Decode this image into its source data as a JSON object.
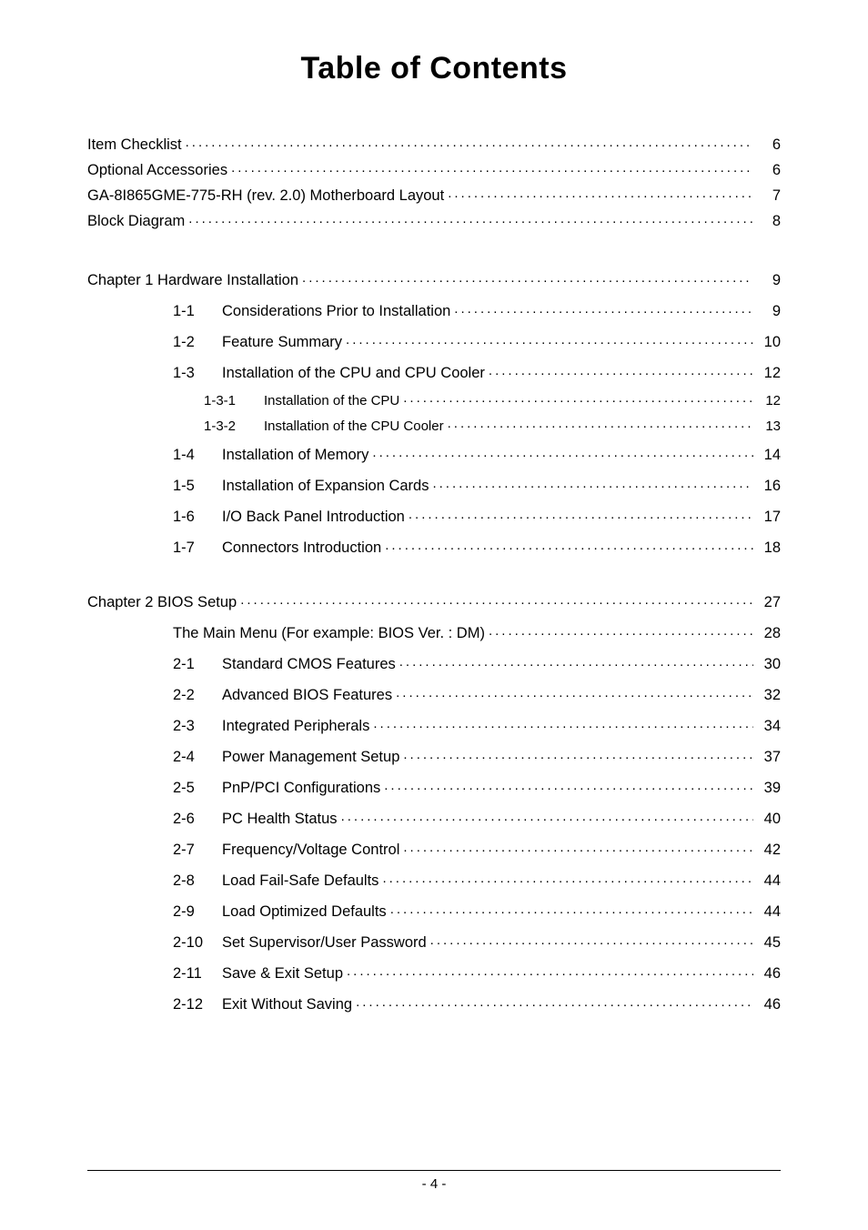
{
  "title": "Table of Contents",
  "footer": "- 4 -",
  "sections": {
    "pre": [
      {
        "label": "Item Checklist",
        "page": "6"
      },
      {
        "label": "Optional Accessories",
        "page": "6"
      },
      {
        "label": "GA-8I865GME-775-RH (rev. 2.0) Motherboard Layout",
        "page": "7"
      },
      {
        "label": "Block Diagram",
        "page": "8"
      }
    ],
    "ch1": {
      "header": {
        "label": "Chapter 1 Hardware Installation",
        "page": "9"
      },
      "items": [
        {
          "num": "1-1",
          "label": "Considerations Prior to Installation",
          "page": "9"
        },
        {
          "num": "1-2",
          "label": "Feature Summary",
          "page": "10"
        },
        {
          "num": "1-3",
          "label": "Installation of the CPU and CPU Cooler",
          "page": "12"
        }
      ],
      "subitems": [
        {
          "num": "1-3-1",
          "label": "Installation of the CPU",
          "page": "12"
        },
        {
          "num": "1-3-2",
          "label": "Installation of the CPU Cooler",
          "page": "13"
        }
      ],
      "items2": [
        {
          "num": "1-4",
          "label": "Installation of Memory",
          "page": "14"
        },
        {
          "num": "1-5",
          "label": "Installation of Expansion Cards",
          "page": "16"
        },
        {
          "num": "1-6",
          "label": "I/O Back Panel Introduction",
          "page": "17"
        },
        {
          "num": "1-7",
          "label": "Connectors Introduction",
          "page": "18"
        }
      ]
    },
    "ch2": {
      "header": {
        "label": "Chapter 2  BIOS Setup",
        "page": "27"
      },
      "main_menu": {
        "label": "The Main Menu (For example: BIOS Ver. : DM)",
        "page": "28"
      },
      "items": [
        {
          "num": "2-1",
          "label": "Standard CMOS Features",
          "page": "30"
        },
        {
          "num": "2-2",
          "label": "Advanced BIOS Features",
          "page": "32"
        },
        {
          "num": "2-3",
          "label": "Integrated Peripherals",
          "page": "34"
        },
        {
          "num": "2-4",
          "label": "Power Management Setup",
          "page": "37"
        },
        {
          "num": "2-5",
          "label": "PnP/PCI Configurations",
          "page": "39"
        },
        {
          "num": "2-6",
          "label": "PC Health Status",
          "page": "40"
        },
        {
          "num": "2-7",
          "label": "Frequency/Voltage Control",
          "page": "42"
        },
        {
          "num": "2-8",
          "label": "Load Fail-Safe Defaults",
          "page": "44"
        },
        {
          "num": "2-9",
          "label": "Load Optimized Defaults",
          "page": "44"
        },
        {
          "num": "2-10",
          "label": "Set Supervisor/User Password",
          "page": "45"
        },
        {
          "num": "2-11",
          "label": "Save & Exit Setup",
          "page": "46"
        },
        {
          "num": "2-12",
          "label": "Exit Without Saving",
          "page": "46"
        }
      ]
    }
  }
}
